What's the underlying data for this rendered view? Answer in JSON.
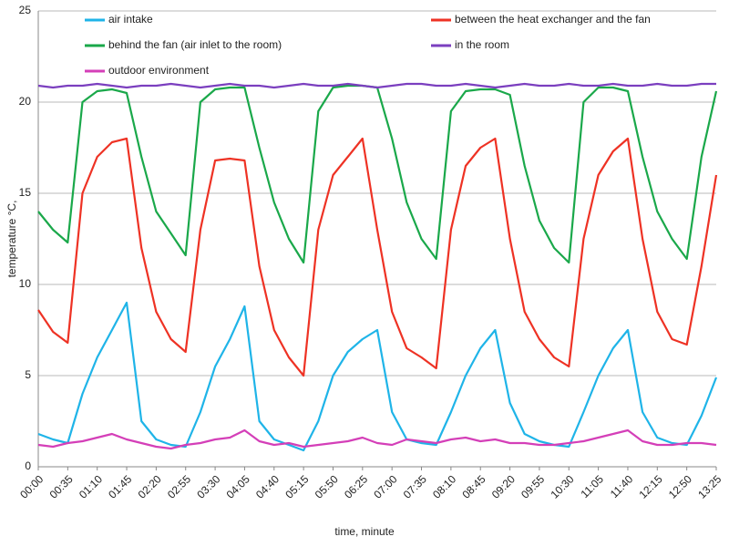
{
  "chart_data": {
    "type": "line",
    "xlabel": "time, minute",
    "ylabel": "temperature °C,",
    "categories": [
      "00:00",
      null,
      "00:35",
      null,
      "01:10",
      null,
      "01:45",
      null,
      "02:20",
      null,
      "02:55",
      null,
      "03:30",
      null,
      "04:05",
      null,
      "04:40",
      null,
      "05:15",
      null,
      "05:50",
      null,
      "06:25",
      null,
      "07:00",
      null,
      "07:35",
      null,
      "08:10",
      null,
      "08:45",
      null,
      "09:20",
      null,
      "09:55",
      null,
      "10:30",
      null,
      "11:05",
      null,
      "11:40",
      null,
      "12:15",
      null,
      "12:50",
      null,
      "13:25"
    ],
    "ylim": [
      0,
      25
    ],
    "yticks": [
      0,
      5,
      10,
      15,
      20,
      25
    ],
    "grid": true,
    "legend": "top",
    "series": [
      {
        "name": "air intake",
        "color": "#1fb4e8",
        "values": [
          1.8,
          1.5,
          1.3,
          4,
          6,
          7.5,
          9,
          2.5,
          1.5,
          1.2,
          1.1,
          3,
          5.5,
          7,
          8.8,
          2.5,
          1.5,
          1.2,
          0.9,
          2.5,
          5,
          6.3,
          7,
          7.5,
          3,
          1.5,
          1.3,
          1.2,
          3,
          5,
          6.5,
          7.5,
          3.5,
          1.8,
          1.4,
          1.2,
          1.1,
          3,
          5,
          6.5,
          7.5,
          3,
          1.6,
          1.3,
          1.2,
          2.8,
          4.9
        ]
      },
      {
        "name": "between the heat exchanger and the fan",
        "color": "#ee3224",
        "values": [
          8.6,
          7.4,
          6.8,
          15,
          17,
          17.8,
          18,
          12,
          8.5,
          7,
          6.3,
          13,
          16.8,
          16.9,
          16.8,
          11,
          7.5,
          6,
          5,
          13,
          16,
          17,
          18,
          13,
          8.5,
          6.5,
          6,
          5.4,
          13,
          16.5,
          17.5,
          18,
          12.5,
          8.5,
          7,
          6,
          5.5,
          12.5,
          16,
          17.3,
          18,
          12.5,
          8.5,
          7,
          6.7,
          11,
          16
        ]
      },
      {
        "name": "behind the fan (air inlet to the room)",
        "color": "#1aa84a",
        "values": [
          14,
          13,
          12.3,
          20,
          20.6,
          20.7,
          20.5,
          17,
          14,
          12.8,
          11.6,
          20,
          20.7,
          20.8,
          20.8,
          17.5,
          14.5,
          12.5,
          11.2,
          19.5,
          20.8,
          20.9,
          20.9,
          20.8,
          18,
          14.5,
          12.5,
          11.4,
          19.5,
          20.6,
          20.7,
          20.7,
          20.4,
          16.5,
          13.5,
          12,
          11.2,
          20,
          20.8,
          20.8,
          20.6,
          17,
          14,
          12.5,
          11.4,
          17,
          20.6
        ]
      },
      {
        "name": "in the room",
        "color": "#7b3fbf",
        "values": [
          20.9,
          20.8,
          20.9,
          20.9,
          21,
          20.9,
          20.8,
          20.9,
          20.9,
          21,
          20.9,
          20.8,
          20.9,
          21,
          20.9,
          20.9,
          20.8,
          20.9,
          21,
          20.9,
          20.9,
          21,
          20.9,
          20.8,
          20.9,
          21,
          21,
          20.9,
          20.9,
          21,
          20.9,
          20.8,
          20.9,
          21,
          20.9,
          20.9,
          21,
          20.9,
          20.9,
          21,
          20.9,
          20.9,
          21,
          20.9,
          20.9,
          21,
          21
        ]
      },
      {
        "name": "outdoor environment",
        "color": "#d43fb8",
        "values": [
          1.2,
          1.1,
          1.3,
          1.4,
          1.6,
          1.8,
          1.5,
          1.3,
          1.1,
          1,
          1.2,
          1.3,
          1.5,
          1.6,
          2,
          1.4,
          1.2,
          1.3,
          1.1,
          1.2,
          1.3,
          1.4,
          1.6,
          1.3,
          1.2,
          1.5,
          1.4,
          1.3,
          1.5,
          1.6,
          1.4,
          1.5,
          1.3,
          1.3,
          1.2,
          1.2,
          1.3,
          1.4,
          1.6,
          1.8,
          2,
          1.4,
          1.2,
          1.2,
          1.3,
          1.3,
          1.2
        ]
      }
    ]
  }
}
